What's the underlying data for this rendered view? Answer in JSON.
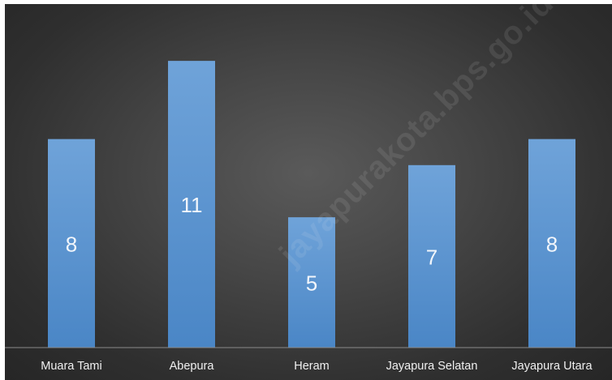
{
  "chart_data": {
    "type": "bar",
    "categories": [
      "Muara Tami",
      "Abepura",
      "Heram",
      "Jayapura Selatan",
      "Jayapura Utara"
    ],
    "values": [
      8,
      11,
      5,
      7,
      8
    ],
    "data_labels": [
      "8",
      "11",
      "5",
      "7",
      "8"
    ],
    "ylim": [
      0,
      12
    ],
    "grid": false,
    "legend": "none",
    "colors": {
      "bar_top": "#6fa3d9",
      "bar_bottom": "#4a86c6",
      "axis": "#8a8a8a",
      "background": "#3a3a3a"
    }
  },
  "watermark": "jayapurakota.bps.go.id"
}
